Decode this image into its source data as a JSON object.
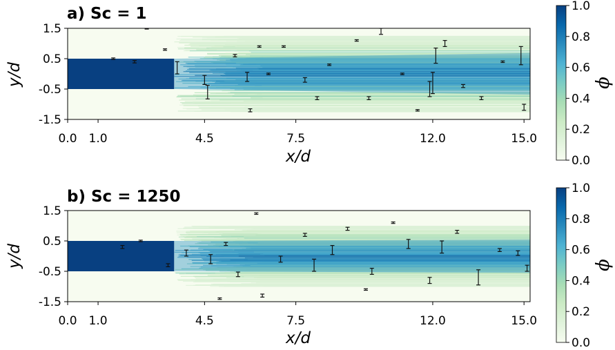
{
  "colors": {
    "colormap": [
      "#f7fcf0",
      "#e0f3db",
      "#ccebc5",
      "#a8ddb5",
      "#7bccc4",
      "#4eb3d3",
      "#2b8cbe",
      "#0868ac",
      "#084081"
    ],
    "errorbar": "#111111",
    "background": "#f7fcf0"
  },
  "colorbar": {
    "label": "ϕ",
    "ticks": [
      "0.0",
      "0.2",
      "0.4",
      "0.6",
      "0.8",
      "1.0"
    ]
  },
  "chart_data": [
    {
      "type": "heatmap",
      "title": "a) Sc = 1",
      "xlabel": "x/d",
      "ylabel": "y/d",
      "xlim": [
        0,
        15.2
      ],
      "ylim": [
        -1.5,
        1.5
      ],
      "xticks": [
        "0.0",
        "1.0",
        "4.5",
        "7.5",
        "12.0",
        "15.0"
      ],
      "xtick_values": [
        0,
        1,
        4.5,
        7.5,
        12,
        15
      ],
      "yticks": [
        "-1.5",
        "-0.5",
        "0.5",
        "1.5"
      ],
      "ytick_values": [
        -1.5,
        -0.5,
        0.5,
        1.5
      ],
      "jet_core": {
        "x_end": 3.5,
        "y_half_width": 0.5,
        "value": 1.0
      },
      "spread_half_width_at_end": 1.25,
      "errorbars": [
        [
          1.5,
          0.5,
          0.05
        ],
        [
          2.2,
          0.4,
          0.08
        ],
        [
          3.6,
          0.2,
          0.4
        ],
        [
          4.5,
          -0.2,
          0.3
        ],
        [
          4.6,
          -0.6,
          0.45
        ],
        [
          5.5,
          0.6,
          0.08
        ],
        [
          6.3,
          0.9,
          0.05
        ],
        [
          5.9,
          -0.1,
          0.3
        ],
        [
          7.1,
          0.9,
          0.05
        ],
        [
          7.8,
          -0.2,
          0.15
        ],
        [
          8.2,
          -0.8,
          0.1
        ],
        [
          9.5,
          1.1,
          0.05
        ],
        [
          10.3,
          1.4,
          0.2
        ],
        [
          11.0,
          0.0,
          0.05
        ],
        [
          11.5,
          -1.2,
          0.05
        ],
        [
          12.1,
          0.6,
          0.5
        ],
        [
          12.4,
          1.0,
          0.2
        ],
        [
          13.0,
          -0.4,
          0.1
        ],
        [
          13.6,
          -0.8,
          0.1
        ],
        [
          14.3,
          0.4,
          0.05
        ],
        [
          14.9,
          0.6,
          0.6
        ],
        [
          15.0,
          -1.1,
          0.2
        ],
        [
          11.9,
          -0.5,
          0.5
        ],
        [
          12.0,
          -0.3,
          0.7
        ],
        [
          9.9,
          -0.8,
          0.1
        ],
        [
          8.6,
          0.3,
          0.05
        ],
        [
          6.0,
          -1.2,
          0.1
        ],
        [
          6.6,
          0.0,
          0.05
        ],
        [
          3.2,
          0.8,
          0.05
        ],
        [
          2.6,
          1.5,
          0.05
        ]
      ]
    },
    {
      "type": "heatmap",
      "title": "b) Sc = 1250",
      "xlabel": "x/d",
      "ylabel": "y/d",
      "xlim": [
        0,
        15.2
      ],
      "ylim": [
        -1.5,
        1.5
      ],
      "xticks": [
        "0.0",
        "1.0",
        "4.5",
        "7.5",
        "12.0",
        "15.0"
      ],
      "xtick_values": [
        0,
        1,
        4.5,
        7.5,
        12,
        15
      ],
      "yticks": [
        "-1.5",
        "-0.5",
        "0.5",
        "1.5"
      ],
      "ytick_values": [
        -1.5,
        -0.5,
        0.5,
        1.5
      ],
      "jet_core": {
        "x_end": 3.5,
        "y_half_width": 0.5,
        "value": 1.0
      },
      "spread_half_width_at_end": 1.0,
      "errorbars": [
        [
          1.8,
          0.3,
          0.1
        ],
        [
          2.4,
          0.5,
          0.05
        ],
        [
          3.3,
          -0.3,
          0.1
        ],
        [
          3.9,
          0.1,
          0.2
        ],
        [
          4.7,
          -0.1,
          0.3
        ],
        [
          5.2,
          0.4,
          0.1
        ],
        [
          5.6,
          -0.6,
          0.15
        ],
        [
          6.2,
          1.4,
          0.05
        ],
        [
          7.0,
          -0.1,
          0.2
        ],
        [
          7.8,
          0.7,
          0.1
        ],
        [
          8.1,
          -0.3,
          0.4
        ],
        [
          8.7,
          0.2,
          0.3
        ],
        [
          9.2,
          0.9,
          0.1
        ],
        [
          10.0,
          -0.5,
          0.2
        ],
        [
          10.7,
          1.1,
          0.05
        ],
        [
          11.2,
          0.4,
          0.3
        ],
        [
          11.9,
          -0.8,
          0.2
        ],
        [
          12.3,
          0.3,
          0.4
        ],
        [
          12.8,
          0.8,
          0.1
        ],
        [
          13.5,
          -0.7,
          0.5
        ],
        [
          14.2,
          0.2,
          0.1
        ],
        [
          14.8,
          0.1,
          0.15
        ],
        [
          15.1,
          -0.4,
          0.2
        ],
        [
          9.8,
          -1.1,
          0.05
        ],
        [
          6.4,
          -1.3,
          0.1
        ],
        [
          5.0,
          -1.4,
          0.05
        ]
      ]
    }
  ]
}
